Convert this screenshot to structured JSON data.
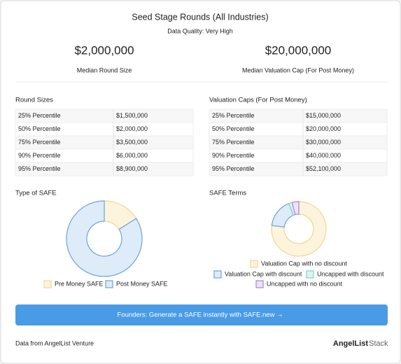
{
  "header": {
    "title": "Seed Stage Rounds (All Industries)",
    "data_quality": "Data Quality: Very High",
    "stats": [
      {
        "value": "$2,000,000",
        "label": "Median Round Size"
      },
      {
        "value": "$20,000,000",
        "label": "Median Valuation Cap (For Post Money)"
      }
    ]
  },
  "tables": [
    {
      "title": "Round Sizes",
      "rows": [
        [
          "25% Percentile",
          "$1,500,000"
        ],
        [
          "50% Percentile",
          "$2,000,000"
        ],
        [
          "75% Percentile",
          "$3,500,000"
        ],
        [
          "90% Percentile",
          "$6,000,000"
        ],
        [
          "95% Percentile",
          "$8,900,000"
        ]
      ]
    },
    {
      "title": "Valuation Caps (For Post Money)",
      "rows": [
        [
          "25% Percentile",
          "$15,000,000"
        ],
        [
          "50% Percentile",
          "$20,000,000"
        ],
        [
          "75% Percentile",
          "$30,000,000"
        ],
        [
          "90% Percentile",
          "$40,000,000"
        ],
        [
          "95% Percentile",
          "$52,100,000"
        ]
      ]
    }
  ],
  "chart_data": [
    {
      "type": "pie",
      "title": "Type of SAFE",
      "categories": [
        "Pre Money SAFE",
        "Post Money SAFE"
      ],
      "values": [
        16,
        84
      ],
      "colors": [
        "#f3d58f",
        "#6aa3d8"
      ],
      "fills": [
        "#fdf4de",
        "#deecf9"
      ]
    },
    {
      "type": "pie",
      "title": "SAFE Terms",
      "categories": [
        "Valuation Cap with no discount",
        "Valuation Cap with discount",
        "Uncapped with discount",
        "Uncapped with no discount"
      ],
      "values": [
        77,
        17,
        2,
        4
      ],
      "colors": [
        "#f3d58f",
        "#6aa3d8",
        "#82d0c7",
        "#a683d8"
      ],
      "fills": [
        "#fdf4de",
        "#deecf9",
        "#def3f0",
        "#eee3f9"
      ]
    }
  ],
  "button": {
    "text": "Founders: Generate a SAFE instantly with SAFE.new",
    "arrow": "→"
  },
  "footer": {
    "source": "Data from AngelList Venture",
    "logo": "AngelList",
    "logo_suffix": "Stack"
  }
}
